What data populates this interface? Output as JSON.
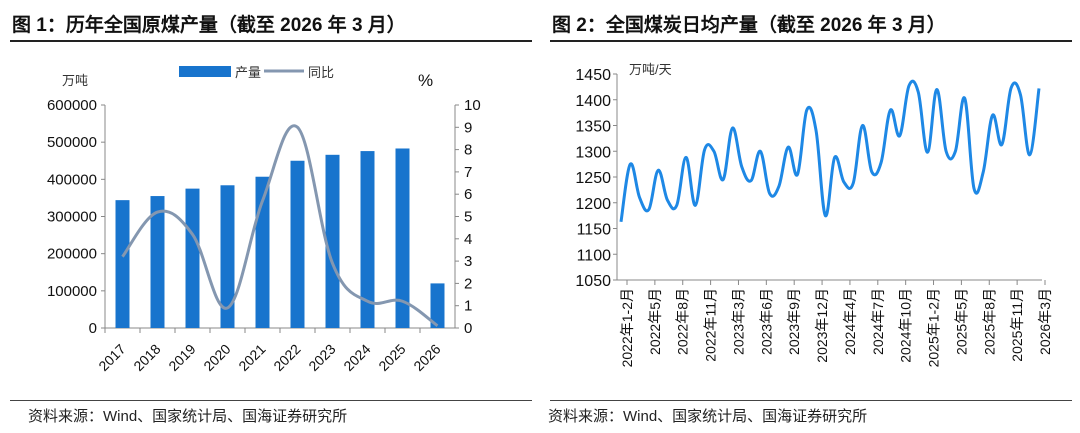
{
  "chart_data": [
    {
      "type": "bar+line",
      "title": "图 1：历年全国原煤产量（截至 2026 年 3 月）",
      "categories": [
        "2017",
        "2018",
        "2019",
        "2020",
        "2021",
        "2022",
        "2023",
        "2024",
        "2025",
        "2026"
      ],
      "series": [
        {
          "name": "产量",
          "axis": "left",
          "type": "bar",
          "values": [
            344000,
            355000,
            375000,
            384000,
            407000,
            450000,
            466000,
            476000,
            483000,
            120000
          ]
        },
        {
          "name": "同比",
          "axis": "right",
          "type": "line",
          "values": [
            3.2,
            5.2,
            4.2,
            0.9,
            5.7,
            9.0,
            2.9,
            1.2,
            1.2,
            0.1
          ]
        }
      ],
      "ylabel": "万吨",
      "y2label": "%",
      "ylim": [
        0,
        600000
      ],
      "yticks": [
        "0",
        "100000",
        "200000",
        "300000",
        "400000",
        "500000",
        "600000"
      ],
      "y2lim": [
        0,
        10
      ],
      "y2ticks": [
        "0",
        "1",
        "2",
        "3",
        "4",
        "5",
        "6",
        "7",
        "8",
        "9",
        "10"
      ],
      "legend": "top",
      "color_bar": "#1874CD",
      "color_line": "#8497B0",
      "source": "资料来源：Wind、国家统计局、国海证券研究所"
    },
    {
      "type": "line",
      "title": "图 2：全国煤炭日均产量（截至 2026 年 3 月）",
      "ylabel": "万吨/天",
      "ylim": [
        1050,
        1450
      ],
      "yticks": [
        "1050",
        "1100",
        "1150",
        "1200",
        "1250",
        "1300",
        "1350",
        "1400",
        "1450"
      ],
      "xticklabels": [
        "2022年1-2月",
        "2022年5月",
        "2022年8月",
        "2022年11月",
        "2023年3月",
        "2023年6月",
        "2023年9月",
        "2023年12月",
        "2024年4月",
        "2024年7月",
        "2024年10月",
        "2025年1-2月",
        "2025年5月",
        "2025年8月",
        "2025年11月",
        "2026年3月"
      ],
      "values": [
        1163,
        1275,
        1210,
        1187,
        1263,
        1205,
        1195,
        1288,
        1195,
        1303,
        1300,
        1245,
        1345,
        1270,
        1243,
        1300,
        1218,
        1232,
        1308,
        1255,
        1380,
        1340,
        1175,
        1288,
        1240,
        1238,
        1350,
        1260,
        1278,
        1380,
        1330,
        1427,
        1415,
        1298,
        1420,
        1300,
        1300,
        1403,
        1228,
        1260,
        1370,
        1313,
        1423,
        1410,
        1293,
        1422
      ],
      "color": "#1E88E5",
      "source": "资料来源：Wind、国家统计局、国海证券研究所"
    }
  ]
}
